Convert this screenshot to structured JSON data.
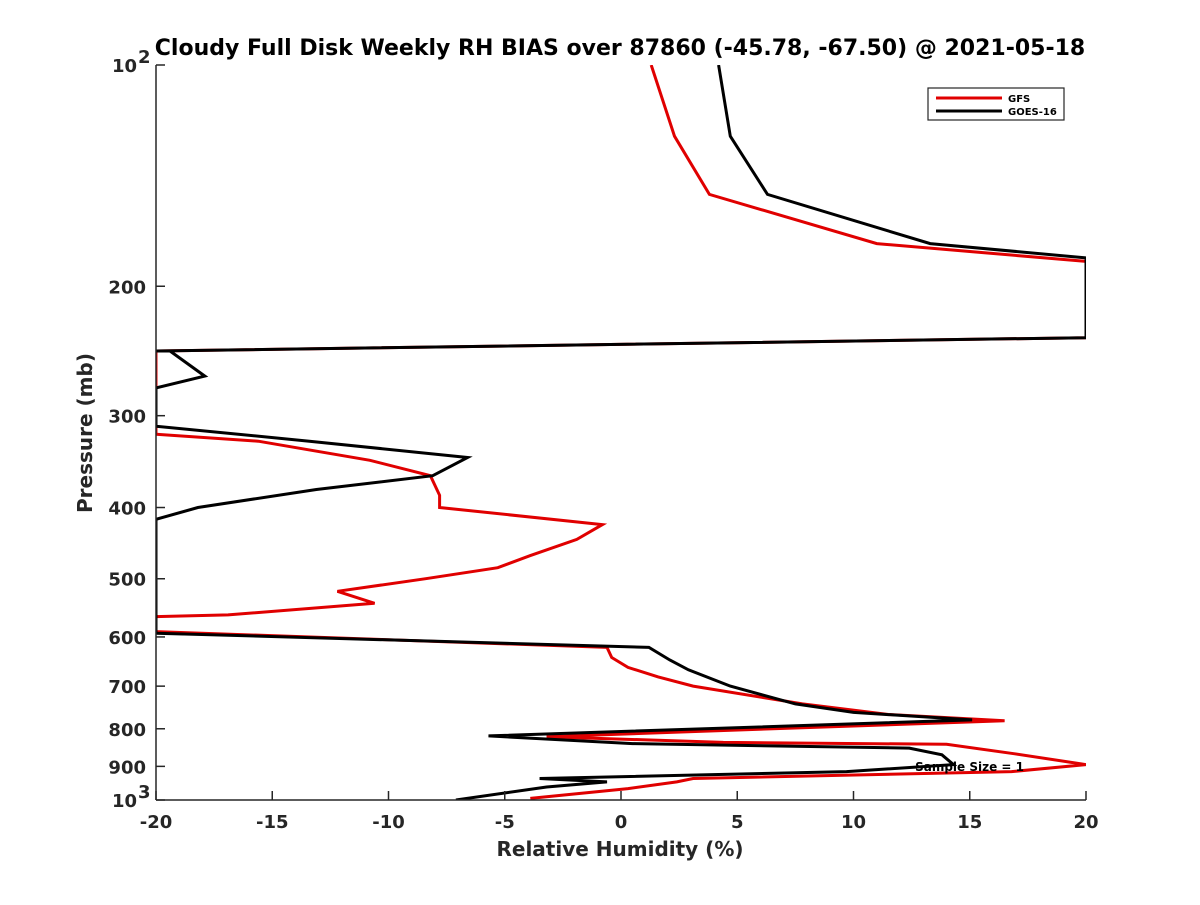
{
  "chart_data": {
    "type": "line",
    "title": "Cloudy Full Disk Weekly RH BIAS over 87860 (-45.78, -67.50) @ 2021-05-18",
    "xlabel": "Relative Humidity (%)",
    "ylabel": "Pressure (mb)",
    "xlim": [
      -20,
      20
    ],
    "ylim": [
      100,
      1000
    ],
    "y_scale": "log",
    "y_reversed": true,
    "grid": false,
    "legend_position": "top-right",
    "x_ticks": [
      "-20",
      "-15",
      "-10",
      "-5",
      "0",
      "5",
      "10",
      "15",
      "20"
    ],
    "x_tick_values": [
      -20,
      -15,
      -10,
      -5,
      0,
      5,
      10,
      15,
      20
    ],
    "y_ticks": [
      {
        "value": 100,
        "base": "10",
        "exp": "2"
      },
      {
        "value": 200,
        "label": "200"
      },
      {
        "value": 300,
        "label": "300"
      },
      {
        "value": 400,
        "label": "400"
      },
      {
        "value": 500,
        "label": "500"
      },
      {
        "value": 600,
        "label": "600"
      },
      {
        "value": 700,
        "label": "700"
      },
      {
        "value": 800,
        "label": "800"
      },
      {
        "value": 900,
        "label": "900"
      },
      {
        "value": 1000,
        "base": "10",
        "exp": "3"
      }
    ],
    "annotation": "Sample Size = 1",
    "series": [
      {
        "name": "GFS",
        "color": "#e00000",
        "points": [
          [
            1.3,
            100
          ],
          [
            2.3,
            125
          ],
          [
            3.8,
            150
          ],
          [
            11,
            175
          ],
          [
            20,
            185
          ],
          [
            20,
            235
          ],
          [
            -20,
            245
          ],
          [
            -20,
            318
          ],
          [
            -15.6,
            325
          ],
          [
            -10.8,
            345
          ],
          [
            -8.2,
            362
          ],
          [
            -7.8,
            385
          ],
          [
            -7.8,
            400
          ],
          [
            -0.8,
            422
          ],
          [
            -1.9,
            442
          ],
          [
            -3.9,
            465
          ],
          [
            -5.3,
            483
          ],
          [
            -8.4,
            500
          ],
          [
            -12.2,
            520
          ],
          [
            -10.6,
            540
          ],
          [
            -16.9,
            560
          ],
          [
            -20,
            563
          ],
          [
            -20,
            590
          ],
          [
            -0.6,
            620
          ],
          [
            -0.4,
            640
          ],
          [
            0.3,
            660
          ],
          [
            1.6,
            680
          ],
          [
            3.1,
            700
          ],
          [
            7.8,
            740
          ],
          [
            11.5,
            765
          ],
          [
            16.5,
            780
          ],
          [
            -3.2,
            820
          ],
          [
            4.4,
            835
          ],
          [
            14,
            840
          ],
          [
            16.9,
            865
          ],
          [
            20,
            895
          ],
          [
            16.8,
            915
          ],
          [
            3.1,
            935
          ],
          [
            2.4,
            945
          ],
          [
            0.3,
            965
          ],
          [
            -3.9,
            995
          ]
        ]
      },
      {
        "name": "GOES-16",
        "color": "#000000",
        "points": [
          [
            4.2,
            100
          ],
          [
            4.7,
            125
          ],
          [
            6.3,
            150
          ],
          [
            13.3,
            175
          ],
          [
            20,
            183
          ],
          [
            20,
            235
          ],
          [
            -20,
            245
          ],
          [
            -19.4,
            245
          ],
          [
            -17.9,
            265
          ],
          [
            -20,
            275
          ],
          [
            -20,
            310
          ],
          [
            -13.4,
            325
          ],
          [
            -6.6,
            342
          ],
          [
            -8.1,
            362
          ],
          [
            -13.1,
            378
          ],
          [
            -18.2,
            400
          ],
          [
            -20,
            415
          ],
          [
            -20,
            593
          ],
          [
            1.2,
            620
          ],
          [
            2.1,
            645
          ],
          [
            2.9,
            665
          ],
          [
            4.7,
            700
          ],
          [
            7.5,
            740
          ],
          [
            10,
            760
          ],
          [
            15.1,
            778
          ],
          [
            -5.7,
            818
          ],
          [
            0.5,
            838
          ],
          [
            12.4,
            850
          ],
          [
            13.8,
            868
          ],
          [
            14.3,
            895
          ],
          [
            9.7,
            915
          ],
          [
            -3.5,
            935
          ],
          [
            -0.6,
            945
          ],
          [
            -3.2,
            960
          ],
          [
            -7.1,
            1000
          ]
        ]
      }
    ]
  }
}
